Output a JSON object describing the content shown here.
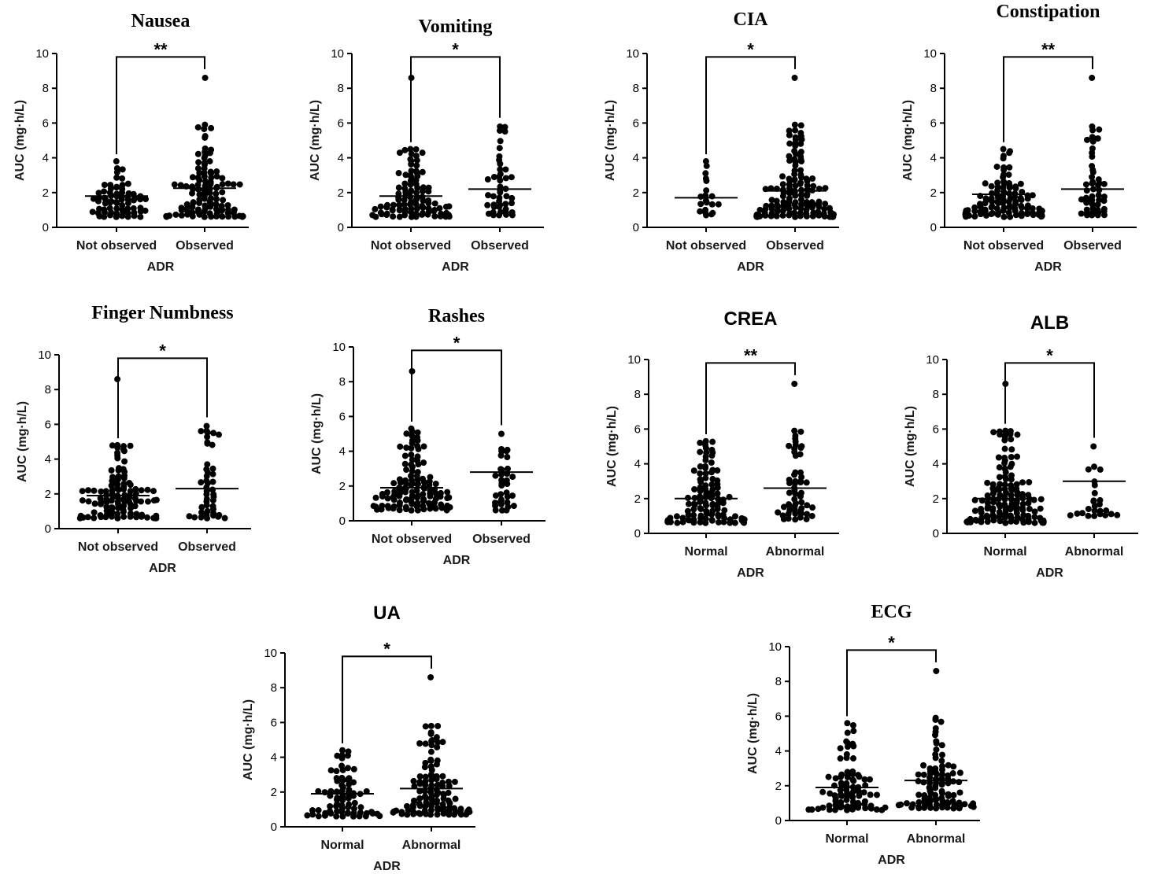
{
  "chart_data": [
    {
      "type": "scatter",
      "title": "Nausea",
      "title_style": "serif",
      "xlabel": "ADR",
      "ylabel": "AUC (mg·h/L)",
      "ylim": [
        0,
        10
      ],
      "yticks": [
        0,
        2,
        4,
        6,
        8,
        10
      ],
      "significance": "**",
      "groups": [
        {
          "label": "Not observed",
          "median": 1.8,
          "n": 70,
          "min": 0.6,
          "max": 3.8,
          "outliers": []
        },
        {
          "label": "Observed",
          "median": 2.25,
          "n": 110,
          "min": 0.6,
          "max": 5.9,
          "outliers": [
            8.6
          ]
        }
      ]
    },
    {
      "type": "scatter",
      "title": "Vomiting",
      "title_style": "serif",
      "xlabel": "ADR",
      "ylabel": "AUC (mg·h/L)",
      "ylim": [
        0,
        10
      ],
      "yticks": [
        0,
        2,
        4,
        6,
        8,
        10
      ],
      "significance": "*",
      "groups": [
        {
          "label": "Not observed",
          "median": 1.8,
          "n": 100,
          "min": 0.6,
          "max": 4.5,
          "outliers": [
            8.6
          ]
        },
        {
          "label": "Observed",
          "median": 2.2,
          "n": 45,
          "min": 0.7,
          "max": 5.8,
          "outliers": []
        }
      ]
    },
    {
      "type": "scatter",
      "title": "CIA",
      "title_style": "serif",
      "xlabel": "ADR",
      "ylabel": "AUC (mg·h/L)",
      "ylim": [
        0,
        10
      ],
      "yticks": [
        0,
        2,
        4,
        6,
        8,
        10
      ],
      "significance": "*",
      "groups": [
        {
          "label": "Not observed",
          "median": 1.7,
          "n": 20,
          "min": 0.7,
          "max": 3.8,
          "outliers": []
        },
        {
          "label": "Observed",
          "median": 2.1,
          "n": 140,
          "min": 0.6,
          "max": 5.9,
          "outliers": [
            8.6
          ]
        }
      ]
    },
    {
      "type": "scatter",
      "title": "Constipation",
      "title_style": "serif",
      "xlabel": "ADR",
      "ylabel": "AUC (mg·h/L)",
      "ylim": [
        0,
        10
      ],
      "yticks": [
        0,
        2,
        4,
        6,
        8,
        10
      ],
      "significance": "**",
      "groups": [
        {
          "label": "Not observed",
          "median": 1.9,
          "n": 110,
          "min": 0.6,
          "max": 4.5,
          "outliers": []
        },
        {
          "label": "Observed",
          "median": 2.2,
          "n": 50,
          "min": 0.7,
          "max": 5.8,
          "outliers": [
            8.6
          ]
        }
      ]
    },
    {
      "type": "scatter",
      "title": "Finger Numbness",
      "title_style": "serif",
      "xlabel": "ADR",
      "ylabel": "AUC (mg·h/L)",
      "ylim": [
        0,
        10
      ],
      "yticks": [
        0,
        2,
        4,
        6,
        8,
        10
      ],
      "significance": "*",
      "groups": [
        {
          "label": "Not observed",
          "median": 1.9,
          "n": 110,
          "min": 0.6,
          "max": 4.8,
          "outliers": [
            8.6
          ]
        },
        {
          "label": "Observed",
          "median": 2.3,
          "n": 45,
          "min": 0.6,
          "max": 5.9,
          "outliers": []
        }
      ]
    },
    {
      "type": "scatter",
      "title": "Rashes",
      "title_style": "serif",
      "xlabel": "ADR",
      "ylabel": "AUC (mg·h/L)",
      "ylim": [
        0,
        10
      ],
      "yticks": [
        0,
        2,
        4,
        6,
        8,
        10
      ],
      "significance": "*",
      "groups": [
        {
          "label": "Not observed",
          "median": 1.9,
          "n": 120,
          "min": 0.6,
          "max": 5.3,
          "outliers": [
            8.6
          ]
        },
        {
          "label": "Observed",
          "median": 2.8,
          "n": 35,
          "min": 0.6,
          "max": 5.0,
          "outliers": []
        }
      ]
    },
    {
      "type": "scatter",
      "title": "CREA",
      "title_style": "sans",
      "xlabel": "ADR",
      "ylabel": "AUC (mg·h/L)",
      "ylim": [
        0,
        10
      ],
      "yticks": [
        0,
        2,
        4,
        6,
        8,
        10
      ],
      "significance": "**",
      "groups": [
        {
          "label": "Normal",
          "median": 2.0,
          "n": 110,
          "min": 0.6,
          "max": 5.3,
          "outliers": []
        },
        {
          "label": "Abnormal",
          "median": 2.6,
          "n": 55,
          "min": 0.8,
          "max": 5.9,
          "outliers": [
            8.6
          ]
        }
      ]
    },
    {
      "type": "scatter",
      "title": "ALB",
      "title_style": "sans",
      "xlabel": "ADR",
      "ylabel": "AUC (mg·h/L)",
      "ylim": [
        0,
        10
      ],
      "yticks": [
        0,
        2,
        4,
        6,
        8,
        10
      ],
      "significance": "*",
      "groups": [
        {
          "label": "Normal",
          "median": 2.0,
          "n": 140,
          "min": 0.6,
          "max": 5.9,
          "outliers": [
            8.6
          ]
        },
        {
          "label": "Abnormal",
          "median": 3.0,
          "n": 25,
          "min": 1.0,
          "max": 5.0,
          "outliers": []
        }
      ]
    },
    {
      "type": "scatter",
      "title": "UA",
      "title_style": "sans",
      "xlabel": "ADR",
      "ylabel": "AUC (mg·h/L)",
      "ylim": [
        0,
        10
      ],
      "yticks": [
        0,
        2,
        4,
        6,
        8,
        10
      ],
      "significance": "*",
      "groups": [
        {
          "label": "Normal",
          "median": 1.9,
          "n": 75,
          "min": 0.6,
          "max": 4.4,
          "outliers": []
        },
        {
          "label": "Abnormal",
          "median": 2.2,
          "n": 110,
          "min": 0.7,
          "max": 5.8,
          "outliers": [
            8.6
          ]
        }
      ]
    },
    {
      "type": "scatter",
      "title": "ECG",
      "title_style": "serif",
      "xlabel": "ADR",
      "ylabel": "AUC (mg·h/L)",
      "ylim": [
        0,
        10
      ],
      "yticks": [
        0,
        2,
        4,
        6,
        8,
        10
      ],
      "significance": "*",
      "groups": [
        {
          "label": "Normal",
          "median": 1.9,
          "n": 85,
          "min": 0.6,
          "max": 5.6,
          "outliers": []
        },
        {
          "label": "Abnormal",
          "median": 2.3,
          "n": 95,
          "min": 0.7,
          "max": 5.9,
          "outliers": [
            8.6
          ]
        }
      ]
    }
  ]
}
